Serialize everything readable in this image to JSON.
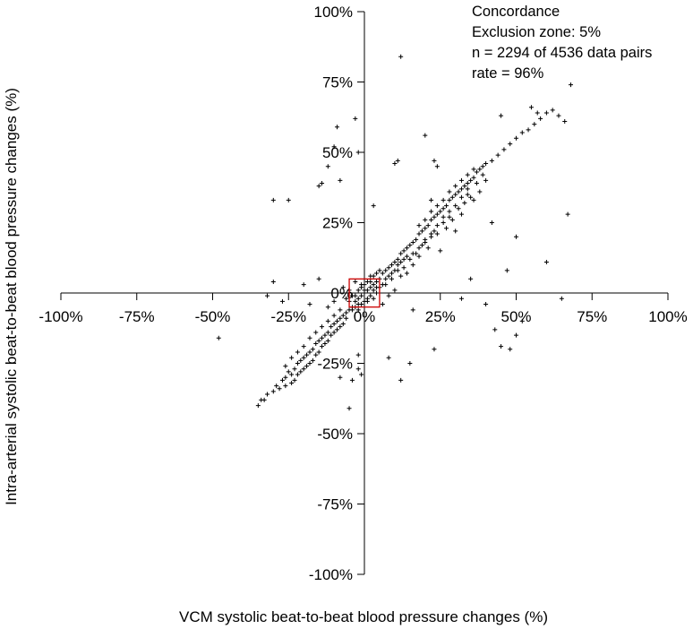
{
  "chart_data": {
    "type": "scatter",
    "xlabel": "VCM systolic beat-to-beat blood pressure changes (%)",
    "ylabel": "Intra-arterial systolic beat-to-beat blood pressure changes (%)",
    "xlim": [
      -100,
      100
    ],
    "ylim": [
      -100,
      100
    ],
    "x_ticks": [
      -100,
      -75,
      -50,
      -25,
      0,
      25,
      50,
      75,
      100
    ],
    "y_ticks": [
      100,
      75,
      50,
      25,
      0,
      -25,
      -50,
      -75,
      -100
    ],
    "x_tick_labels": [
      "-100%",
      "-75%",
      "-50%",
      "-25%",
      "0%",
      "25%",
      "50%",
      "75%",
      "100%"
    ],
    "y_tick_labels": [
      "100%",
      "75%",
      "50%",
      "25%",
      "0%",
      "-25%",
      "-50%",
      "-75%",
      "-100%"
    ],
    "exclusion_zone": {
      "half_width": 5,
      "color": "#cc0000"
    },
    "annotations": [
      "Concordance",
      "Exclusion zone: 5%",
      "n = 2294 of 4536 data pairs",
      "rate = 96%"
    ],
    "marker": "+",
    "points": [
      [
        -35,
        -40
      ],
      [
        -34,
        -38
      ],
      [
        -33,
        -38
      ],
      [
        -32,
        -36
      ],
      [
        -30,
        -35
      ],
      [
        -29,
        -33
      ],
      [
        -28,
        -34
      ],
      [
        -27,
        -31
      ],
      [
        -26,
        -30
      ],
      [
        -25,
        -28
      ],
      [
        -24,
        -29
      ],
      [
        -23,
        -27
      ],
      [
        -22,
        -25
      ],
      [
        -21,
        -24
      ],
      [
        -20,
        -23
      ],
      [
        -19,
        -22
      ],
      [
        -18,
        -21
      ],
      [
        -17,
        -20
      ],
      [
        -16,
        -18
      ],
      [
        -15,
        -17
      ],
      [
        -14,
        -16
      ],
      [
        -13,
        -15
      ],
      [
        -12,
        -14
      ],
      [
        -11,
        -12
      ],
      [
        -10,
        -11
      ],
      [
        -9,
        -10
      ],
      [
        -8,
        -9
      ],
      [
        -7,
        -8
      ],
      [
        -6,
        -7
      ],
      [
        -5,
        -6
      ],
      [
        -4,
        -5
      ],
      [
        -3,
        -3
      ],
      [
        -2,
        -2
      ],
      [
        -1,
        -1
      ],
      [
        0,
        0
      ],
      [
        1,
        1
      ],
      [
        2,
        2
      ],
      [
        3,
        3
      ],
      [
        4,
        4
      ],
      [
        5,
        5
      ],
      [
        6,
        7
      ],
      [
        7,
        8
      ],
      [
        8,
        9
      ],
      [
        9,
        10
      ],
      [
        10,
        11
      ],
      [
        11,
        12
      ],
      [
        12,
        14
      ],
      [
        13,
        15
      ],
      [
        14,
        16
      ],
      [
        15,
        17
      ],
      [
        16,
        18
      ],
      [
        17,
        19
      ],
      [
        18,
        21
      ],
      [
        19,
        22
      ],
      [
        20,
        23
      ],
      [
        21,
        24
      ],
      [
        22,
        26
      ],
      [
        23,
        27
      ],
      [
        24,
        28
      ],
      [
        25,
        29
      ],
      [
        26,
        30
      ],
      [
        27,
        31
      ],
      [
        28,
        33
      ],
      [
        29,
        34
      ],
      [
        30,
        35
      ],
      [
        31,
        36
      ],
      [
        32,
        37
      ],
      [
        33,
        38
      ],
      [
        34,
        39
      ],
      [
        35,
        40
      ],
      [
        36,
        41
      ],
      [
        37,
        43
      ],
      [
        38,
        44
      ],
      [
        39,
        45
      ],
      [
        40,
        46
      ],
      [
        42,
        47
      ],
      [
        44,
        49
      ],
      [
        46,
        51
      ],
      [
        48,
        53
      ],
      [
        50,
        55
      ],
      [
        52,
        57
      ],
      [
        54,
        58
      ],
      [
        56,
        60
      ],
      [
        58,
        62
      ],
      [
        60,
        64
      ],
      [
        62,
        65
      ],
      [
        64,
        63
      ],
      [
        66,
        61
      ],
      [
        68,
        74
      ],
      [
        55,
        66
      ],
      [
        45,
        63
      ],
      [
        57,
        64
      ],
      [
        20,
        56
      ],
      [
        12,
        84
      ],
      [
        -10,
        52
      ],
      [
        -9,
        59
      ],
      [
        -3,
        62
      ],
      [
        -30,
        33
      ],
      [
        -25,
        33
      ],
      [
        -15,
        38
      ],
      [
        -12,
        45
      ],
      [
        -14,
        39
      ],
      [
        -8,
        40
      ],
      [
        -2,
        50
      ],
      [
        3,
        31
      ],
      [
        10,
        46
      ],
      [
        11,
        47
      ],
      [
        23,
        47
      ],
      [
        24,
        45
      ],
      [
        -2,
        -27
      ],
      [
        -4,
        -31
      ],
      [
        -1,
        -29
      ],
      [
        12,
        -31
      ],
      [
        -5,
        -41
      ],
      [
        15,
        -25
      ],
      [
        23,
        -20
      ],
      [
        43,
        -13
      ],
      [
        45,
        -19
      ],
      [
        48,
        -20
      ],
      [
        50,
        -15
      ],
      [
        -48,
        -16
      ],
      [
        -8,
        -30
      ],
      [
        -2,
        -22
      ],
      [
        8,
        -23
      ],
      [
        16,
        -6
      ],
      [
        32,
        -2
      ],
      [
        35,
        5
      ],
      [
        40,
        -4
      ],
      [
        52,
        -10
      ],
      [
        65,
        -2
      ],
      [
        60,
        11
      ],
      [
        67,
        28
      ],
      [
        47,
        8
      ],
      [
        50,
        20
      ],
      [
        42,
        25
      ],
      [
        25,
        15
      ],
      [
        22,
        33
      ],
      [
        30,
        22
      ],
      [
        -20,
        3
      ],
      [
        -30,
        4
      ],
      [
        -32,
        -1
      ],
      [
        -27,
        -3
      ],
      [
        -18,
        -4
      ],
      [
        -15,
        5
      ],
      [
        -12,
        -5
      ],
      [
        -10,
        -3
      ],
      [
        -7,
        2
      ],
      [
        -6,
        -2
      ],
      [
        -5,
        1
      ],
      [
        -4,
        -1
      ],
      [
        -3,
        4
      ],
      [
        -2,
        -4
      ],
      [
        -1,
        3
      ],
      [
        1,
        -3
      ],
      [
        2,
        4
      ],
      [
        3,
        -2
      ],
      [
        4,
        2
      ],
      [
        6,
        -4
      ],
      [
        7,
        3
      ],
      [
        8,
        -1
      ],
      [
        9,
        5
      ],
      [
        10,
        1
      ],
      [
        11,
        8
      ],
      [
        12,
        6
      ],
      [
        13,
        9
      ],
      [
        14,
        7
      ],
      [
        15,
        12
      ],
      [
        16,
        10
      ],
      [
        17,
        14
      ],
      [
        18,
        13
      ],
      [
        19,
        17
      ],
      [
        20,
        18
      ],
      [
        21,
        16
      ],
      [
        22,
        20
      ],
      [
        23,
        22
      ],
      [
        24,
        21
      ],
      [
        26,
        25
      ],
      [
        27,
        23
      ],
      [
        28,
        27
      ],
      [
        29,
        26
      ],
      [
        31,
        30
      ],
      [
        32,
        28
      ],
      [
        33,
        32
      ],
      [
        34,
        35
      ],
      [
        35,
        34
      ],
      [
        36,
        33
      ],
      [
        37,
        39
      ],
      [
        38,
        36
      ],
      [
        39,
        42
      ],
      [
        40,
        40
      ],
      [
        -6,
        -9
      ],
      [
        -7,
        -11
      ],
      [
        -8,
        -12
      ],
      [
        -9,
        -13
      ],
      [
        -10,
        -14
      ],
      [
        -11,
        -15
      ],
      [
        -12,
        -17
      ],
      [
        -13,
        -18
      ],
      [
        -14,
        -19
      ],
      [
        -15,
        -21
      ],
      [
        -16,
        -22
      ],
      [
        -17,
        -24
      ],
      [
        -18,
        -25
      ],
      [
        -19,
        -26
      ],
      [
        -20,
        -27
      ],
      [
        -21,
        -28
      ],
      [
        -22,
        -29
      ],
      [
        -23,
        -31
      ],
      [
        -24,
        -32
      ],
      [
        -26,
        -33
      ],
      [
        -5,
        -3
      ],
      [
        -4,
        -6
      ],
      [
        -3,
        -5
      ],
      [
        -2,
        -6
      ],
      [
        -1,
        -4
      ],
      [
        0,
        -3
      ],
      [
        1,
        -2
      ],
      [
        2,
        -1
      ],
      [
        3,
        1
      ],
      [
        4,
        0
      ],
      [
        5,
        2
      ],
      [
        6,
        3
      ],
      [
        7,
        5
      ],
      [
        8,
        6
      ],
      [
        9,
        7
      ],
      [
        10,
        8
      ],
      [
        11,
        10
      ],
      [
        12,
        11
      ],
      [
        13,
        12
      ],
      [
        14,
        13
      ],
      [
        0,
        3
      ],
      [
        1,
        4
      ],
      [
        2,
        6
      ],
      [
        3,
        6
      ],
      [
        4,
        7
      ],
      [
        5,
        8
      ],
      [
        -3,
        -1
      ],
      [
        -2,
        1
      ],
      [
        -1,
        2
      ],
      [
        0,
        1
      ],
      [
        -8,
        -6
      ],
      [
        -10,
        -8
      ],
      [
        -12,
        -10
      ],
      [
        -14,
        -12
      ],
      [
        -16,
        -14
      ],
      [
        -18,
        -16
      ],
      [
        -20,
        -19
      ],
      [
        -22,
        -21
      ],
      [
        -24,
        -23
      ],
      [
        -26,
        -26
      ],
      [
        18,
        24
      ],
      [
        20,
        26
      ],
      [
        22,
        29
      ],
      [
        24,
        31
      ],
      [
        26,
        33
      ],
      [
        28,
        36
      ],
      [
        30,
        38
      ],
      [
        32,
        40
      ],
      [
        34,
        42
      ],
      [
        36,
        44
      ],
      [
        16,
        14
      ],
      [
        18,
        16
      ],
      [
        20,
        19
      ],
      [
        22,
        21
      ],
      [
        24,
        24
      ],
      [
        26,
        27
      ],
      [
        28,
        29
      ],
      [
        30,
        31
      ],
      [
        32,
        34
      ],
      [
        34,
        37
      ]
    ]
  }
}
